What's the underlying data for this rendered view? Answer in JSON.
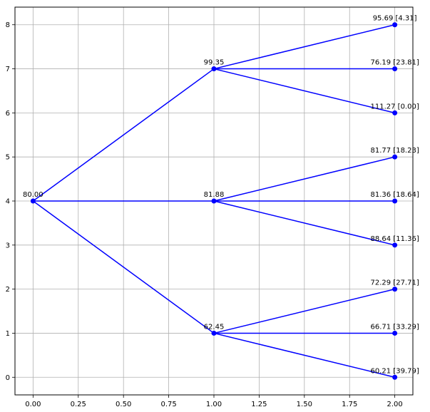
{
  "chart_data": {
    "type": "line",
    "title": "",
    "xlabel": "",
    "ylabel": "",
    "xlim": [
      -0.1,
      2.1
    ],
    "ylim": [
      -0.4,
      8.4
    ],
    "grid": true,
    "x_ticks": [
      0.0,
      0.25,
      0.5,
      0.75,
      1.0,
      1.25,
      1.5,
      1.75,
      2.0
    ],
    "x_tick_labels": [
      "0.00",
      "0.25",
      "0.50",
      "0.75",
      "1.00",
      "1.25",
      "1.50",
      "1.75",
      "2.00"
    ],
    "y_ticks": [
      0,
      1,
      2,
      3,
      4,
      5,
      6,
      7,
      8
    ],
    "y_tick_labels": [
      "0",
      "1",
      "2",
      "3",
      "4",
      "5",
      "6",
      "7",
      "8"
    ],
    "line_color": "#0000ff",
    "marker_color": "#0000ff",
    "nodes": [
      {
        "x": 0,
        "y": 4,
        "label": "80.00"
      },
      {
        "x": 1,
        "y": 7,
        "label": "99.35"
      },
      {
        "x": 1,
        "y": 4,
        "label": "81.88"
      },
      {
        "x": 1,
        "y": 1,
        "label": "62.45"
      },
      {
        "x": 2,
        "y": 8,
        "label": "95.69 [4.31]"
      },
      {
        "x": 2,
        "y": 7,
        "label": "76.19 [23.81]"
      },
      {
        "x": 2,
        "y": 6,
        "label": "111.27 [0.00]"
      },
      {
        "x": 2,
        "y": 5,
        "label": "81.77 [18.23]"
      },
      {
        "x": 2,
        "y": 4,
        "label": "81.36 [18.64]"
      },
      {
        "x": 2,
        "y": 3,
        "label": "88.64 [11.36]"
      },
      {
        "x": 2,
        "y": 2,
        "label": "72.29 [27.71]"
      },
      {
        "x": 2,
        "y": 1,
        "label": "66.71 [33.29]"
      },
      {
        "x": 2,
        "y": 0,
        "label": "60.21 [39.79]"
      }
    ],
    "edges": [
      [
        0,
        1
      ],
      [
        0,
        2
      ],
      [
        0,
        3
      ],
      [
        1,
        4
      ],
      [
        1,
        5
      ],
      [
        1,
        6
      ],
      [
        2,
        7
      ],
      [
        2,
        8
      ],
      [
        2,
        9
      ],
      [
        3,
        10
      ],
      [
        3,
        11
      ],
      [
        3,
        12
      ]
    ]
  }
}
